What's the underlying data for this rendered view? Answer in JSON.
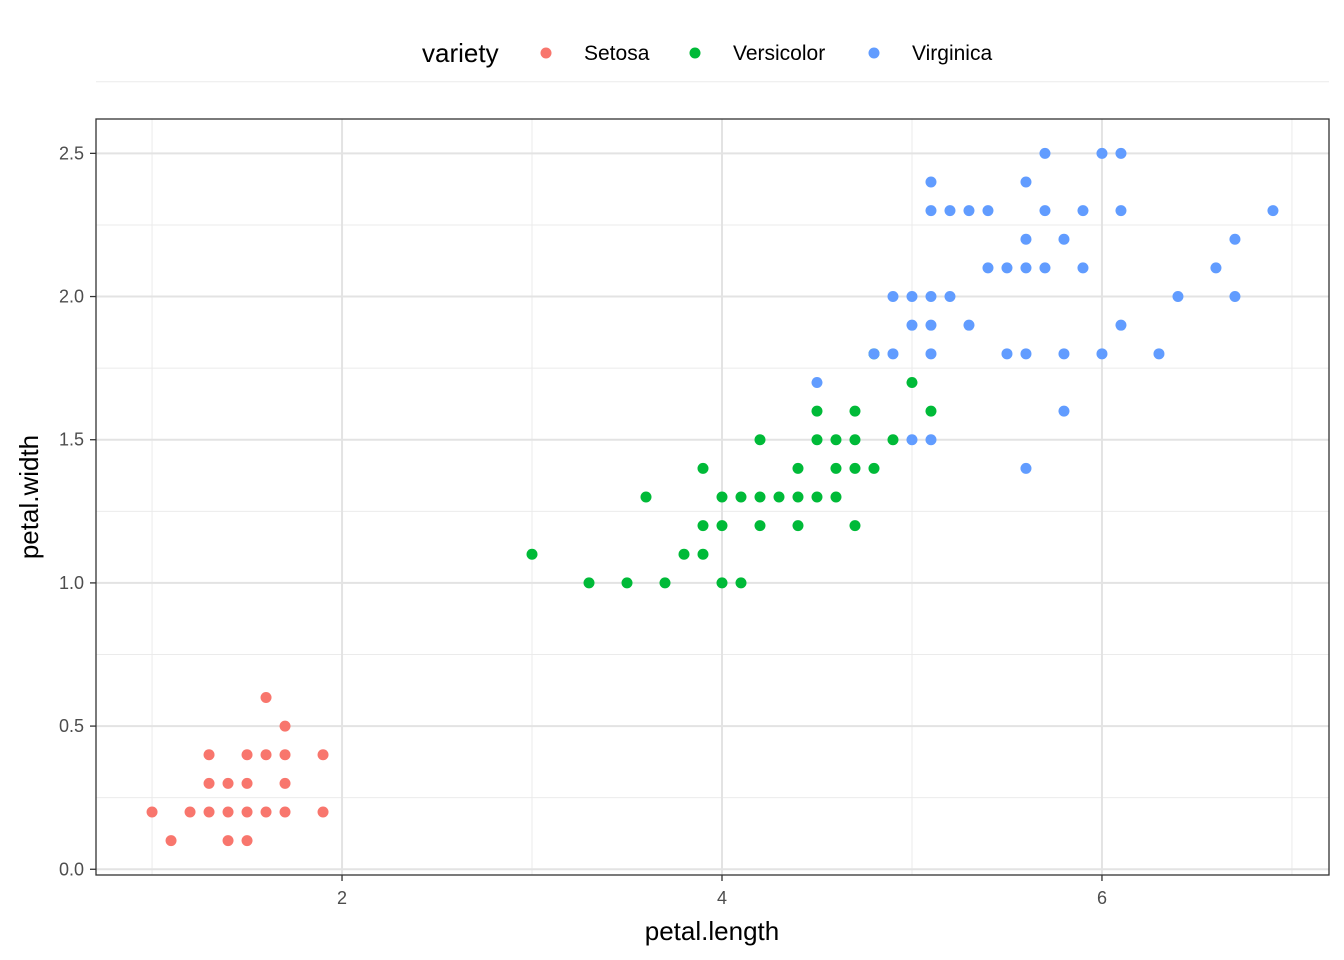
{
  "chart_data": {
    "type": "scatter",
    "xlabel": "petal.length",
    "ylabel": "petal.width",
    "xlim": [
      0.705,
      7.195
    ],
    "ylim": [
      -0.02,
      2.62
    ],
    "xticks": [
      2,
      4,
      6
    ],
    "xtick_labels": [
      "2",
      "4",
      "6"
    ],
    "yticks": [
      0.0,
      0.5,
      1.0,
      1.5,
      2.0,
      2.5
    ],
    "ytick_labels": [
      "0.0",
      "0.5",
      "1.0",
      "1.5",
      "2.0",
      "2.5"
    ],
    "grid": true,
    "legend": {
      "title": "variety",
      "position": "top"
    },
    "series": [
      {
        "name": "Setosa",
        "color": "#F8766D",
        "points": [
          [
            1.0,
            0.2
          ],
          [
            1.1,
            0.1
          ],
          [
            1.2,
            0.2
          ],
          [
            1.3,
            0.2
          ],
          [
            1.3,
            0.3
          ],
          [
            1.3,
            0.4
          ],
          [
            1.4,
            0.1
          ],
          [
            1.4,
            0.2
          ],
          [
            1.4,
            0.3
          ],
          [
            1.5,
            0.1
          ],
          [
            1.5,
            0.2
          ],
          [
            1.5,
            0.3
          ],
          [
            1.5,
            0.4
          ],
          [
            1.6,
            0.2
          ],
          [
            1.6,
            0.4
          ],
          [
            1.6,
            0.6
          ],
          [
            1.7,
            0.2
          ],
          [
            1.7,
            0.3
          ],
          [
            1.7,
            0.4
          ],
          [
            1.7,
            0.5
          ],
          [
            1.9,
            0.2
          ],
          [
            1.9,
            0.4
          ]
        ]
      },
      {
        "name": "Versicolor",
        "color": "#00BA38",
        "points": [
          [
            3.0,
            1.1
          ],
          [
            3.3,
            1.0
          ],
          [
            3.5,
            1.0
          ],
          [
            3.6,
            1.3
          ],
          [
            3.7,
            1.0
          ],
          [
            3.8,
            1.1
          ],
          [
            3.9,
            1.1
          ],
          [
            3.9,
            1.2
          ],
          [
            3.9,
            1.4
          ],
          [
            4.0,
            1.0
          ],
          [
            4.0,
            1.2
          ],
          [
            4.0,
            1.3
          ],
          [
            4.1,
            1.0
          ],
          [
            4.1,
            1.3
          ],
          [
            4.2,
            1.2
          ],
          [
            4.2,
            1.3
          ],
          [
            4.2,
            1.5
          ],
          [
            4.3,
            1.3
          ],
          [
            4.4,
            1.2
          ],
          [
            4.4,
            1.3
          ],
          [
            4.4,
            1.4
          ],
          [
            4.5,
            1.3
          ],
          [
            4.5,
            1.5
          ],
          [
            4.5,
            1.6
          ],
          [
            4.6,
            1.3
          ],
          [
            4.6,
            1.4
          ],
          [
            4.6,
            1.5
          ],
          [
            4.7,
            1.2
          ],
          [
            4.7,
            1.4
          ],
          [
            4.7,
            1.5
          ],
          [
            4.7,
            1.6
          ],
          [
            4.8,
            1.4
          ],
          [
            4.8,
            1.8
          ],
          [
            4.9,
            1.5
          ],
          [
            5.0,
            1.7
          ],
          [
            5.1,
            1.6
          ]
        ]
      },
      {
        "name": "Virginica",
        "color": "#619CFF",
        "points": [
          [
            4.5,
            1.7
          ],
          [
            4.8,
            1.8
          ],
          [
            4.9,
            1.8
          ],
          [
            4.9,
            2.0
          ],
          [
            5.0,
            1.5
          ],
          [
            5.0,
            1.9
          ],
          [
            5.0,
            2.0
          ],
          [
            5.1,
            1.5
          ],
          [
            5.1,
            1.8
          ],
          [
            5.1,
            1.9
          ],
          [
            5.1,
            2.0
          ],
          [
            5.1,
            2.3
          ],
          [
            5.1,
            2.4
          ],
          [
            5.2,
            2.0
          ],
          [
            5.2,
            2.3
          ],
          [
            5.3,
            1.9
          ],
          [
            5.3,
            2.3
          ],
          [
            5.4,
            2.1
          ],
          [
            5.4,
            2.3
          ],
          [
            5.5,
            1.8
          ],
          [
            5.5,
            2.1
          ],
          [
            5.6,
            1.4
          ],
          [
            5.6,
            1.8
          ],
          [
            5.6,
            2.1
          ],
          [
            5.6,
            2.2
          ],
          [
            5.6,
            2.4
          ],
          [
            5.7,
            2.1
          ],
          [
            5.7,
            2.3
          ],
          [
            5.7,
            2.5
          ],
          [
            5.8,
            1.6
          ],
          [
            5.8,
            1.8
          ],
          [
            5.8,
            2.2
          ],
          [
            5.9,
            2.1
          ],
          [
            5.9,
            2.3
          ],
          [
            6.0,
            1.8
          ],
          [
            6.0,
            2.5
          ],
          [
            6.1,
            1.9
          ],
          [
            6.1,
            2.3
          ],
          [
            6.1,
            2.5
          ],
          [
            6.3,
            1.8
          ],
          [
            6.4,
            2.0
          ],
          [
            6.6,
            2.1
          ],
          [
            6.7,
            2.0
          ],
          [
            6.7,
            2.2
          ],
          [
            6.9,
            2.3
          ]
        ]
      }
    ]
  }
}
